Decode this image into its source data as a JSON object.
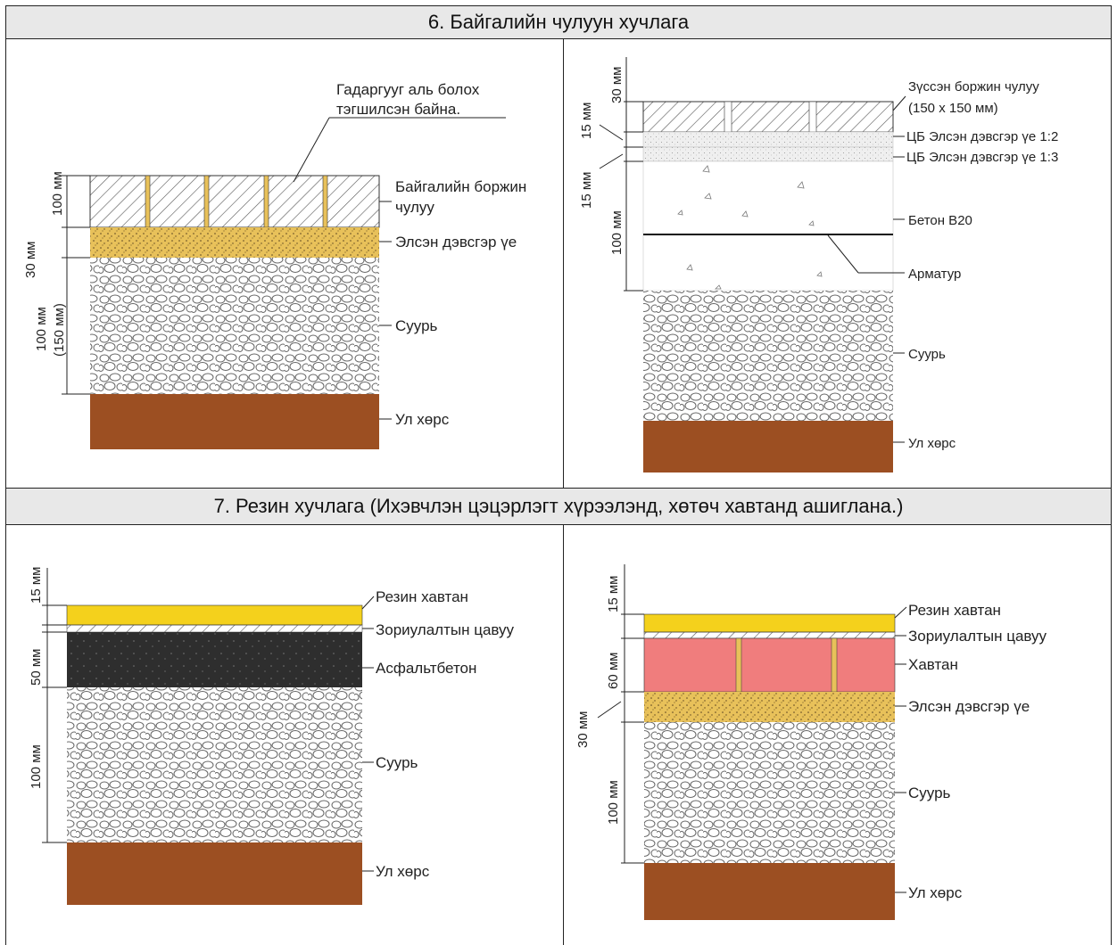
{
  "section6": {
    "title": "6. Байгалийн чулуун хучлага",
    "left": {
      "note": [
        "Гадаргууг аль болох",
        "тэгшилсэн байна."
      ],
      "layers": {
        "stone": [
          "Байгалийн боржин",
          "чулуу"
        ],
        "sand": "Элсэн дэвсгэр үе",
        "base": "Суурь",
        "soil": "Ул хөрс"
      },
      "dims": {
        "d100": "100 мм",
        "d30": "30 мм",
        "d100_150a": "100 мм",
        "d100_150b": "(150 мм)"
      }
    },
    "right": {
      "layers": {
        "cut_stone": [
          "Зүссэн боржин чулуу",
          "(150 х 150 мм)"
        ],
        "mortar1": "ЦБ Элсэн дэвсгэр үе 1:2",
        "mortar2": "ЦБ Элсэн дэвсгэр үе 1:3",
        "concrete": "Бетон В20",
        "rebar": "Арматур",
        "base": "Суурь",
        "soil": "Ул хөрс"
      },
      "dims": {
        "d30": "30 мм",
        "d15a": "15 мм",
        "d15b": "15 мм",
        "d100": "100 мм"
      }
    }
  },
  "section7": {
    "title": "7. Резин хучлага (Ихэвчлэн цэцэрлэгт хүрээлэнд, хөтөч хавтанд ашиглана.)",
    "left": {
      "layers": {
        "rubber": "Резин хавтан",
        "glue": "Зориулалтын цавуу",
        "asphalt": "Асфальтбетон",
        "base": "Суурь",
        "soil": "Ул хөрс"
      },
      "dims": {
        "d15": "15 мм",
        "d50": "50 мм",
        "d100": "100 мм"
      }
    },
    "right": {
      "layers": {
        "rubber": "Резин хавтан",
        "glue": "Зориулалтын цавуу",
        "tile": "Хавтан",
        "sand": "Элсэн дэвсгэр үе",
        "base": "Суурь",
        "soil": "Ул хөрс"
      },
      "dims": {
        "d15": "15 мм",
        "d60": "60 мм",
        "d30": "30 мм",
        "d100": "100 мм"
      }
    }
  },
  "colors": {
    "soil": "#9c4f22",
    "sand": "#e8c15a",
    "rubber": "#f4d11c",
    "asphalt": "#2e2e2e",
    "tile": "#f07d7d",
    "header_bg": "#e8e8e8"
  }
}
